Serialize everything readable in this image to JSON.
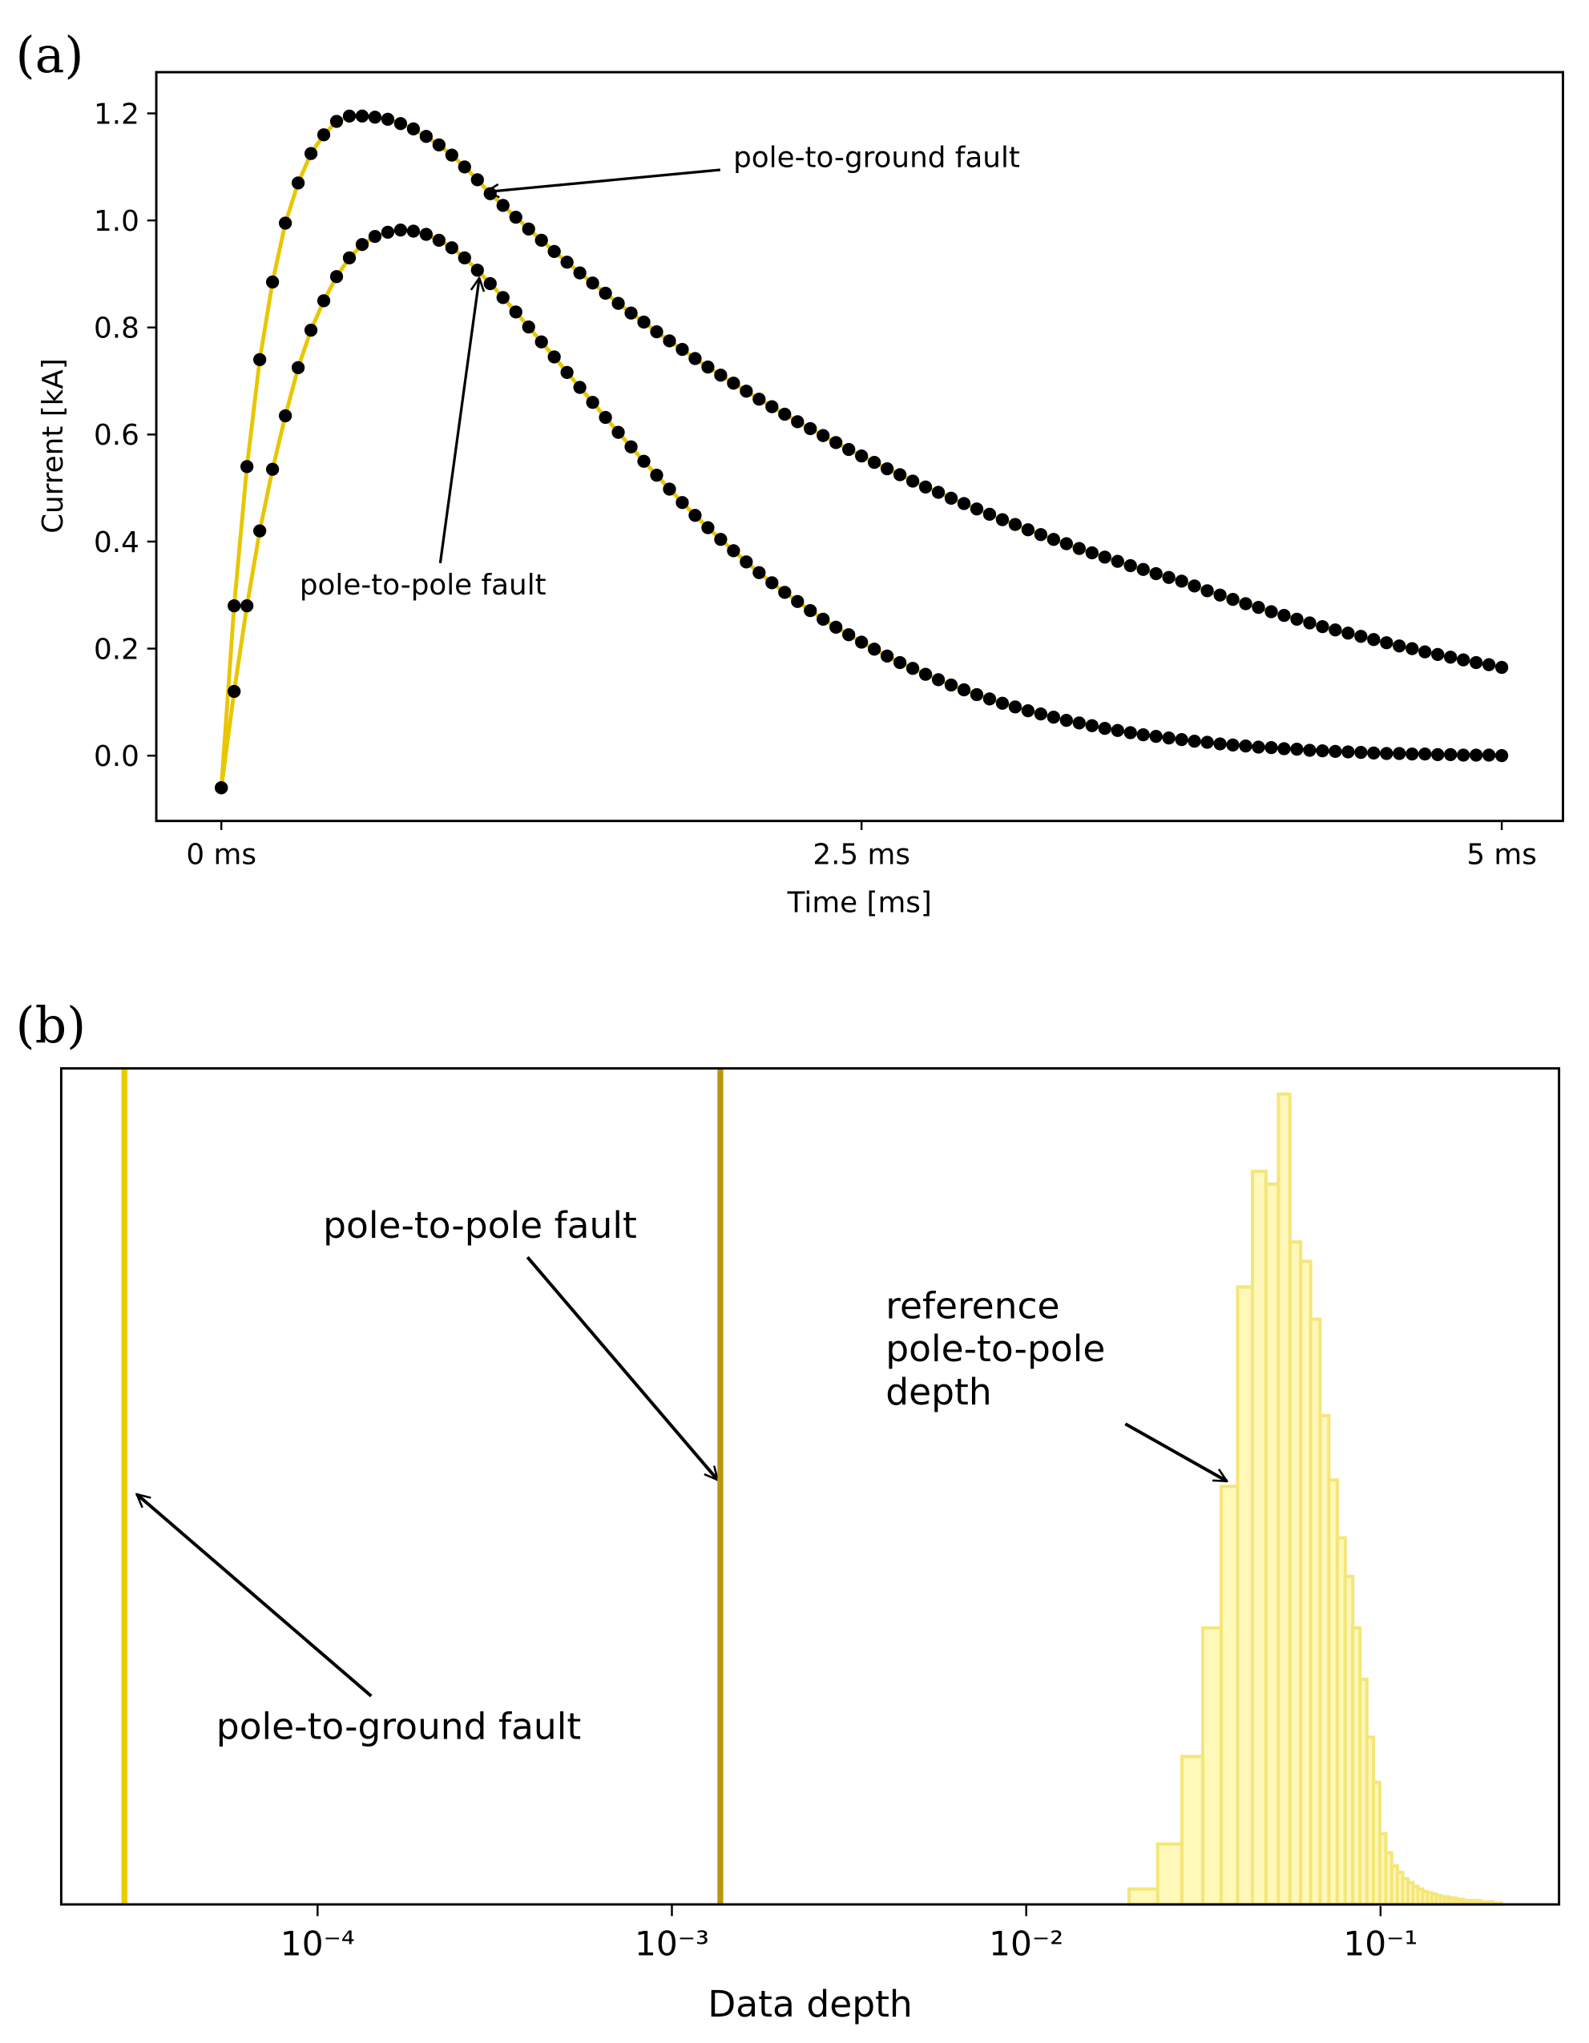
{
  "chart_data": [
    {
      "type": "line",
      "panel_label": "(a)",
      "xlabel": "Time [ms]",
      "ylabel": "Current [kA]",
      "annotations": [
        "pole-to-ground fault",
        "pole-to-pole fault"
      ],
      "xlim": [
        -0.254,
        5.239
      ],
      "ylim": [
        -0.122,
        1.277
      ],
      "xticks": [
        {
          "value": 0,
          "label": "0 ms"
        },
        {
          "value": 2.5,
          "label": "2.5 ms"
        },
        {
          "value": 5,
          "label": "5 ms"
        }
      ],
      "yticks": [
        {
          "value": 0,
          "label": "0.0"
        },
        0.2,
        0.4,
        0.6,
        0.8,
        {
          "value": 1,
          "label": "1.0"
        },
        1.2
      ],
      "grid": false,
      "x": [
        0,
        0.05,
        0.1,
        0.15,
        0.2,
        0.25,
        0.3,
        0.35,
        0.4,
        0.45,
        0.5,
        0.55,
        0.6,
        0.65,
        0.7,
        0.75,
        0.8,
        0.85,
        0.9,
        0.95,
        1,
        1.05,
        1.1,
        1.15,
        1.2,
        1.25,
        1.3,
        1.35,
        1.4,
        1.45,
        1.5,
        1.55,
        1.6,
        1.65,
        1.7,
        1.75,
        1.8,
        1.85,
        1.9,
        1.95,
        2,
        2.05,
        2.1,
        2.15,
        2.2,
        2.25,
        2.3,
        2.35,
        2.4,
        2.45,
        2.5,
        2.55,
        2.6,
        2.65,
        2.7,
        2.75,
        2.8,
        2.85,
        2.9,
        2.95,
        3,
        3.05,
        3.1,
        3.15,
        3.2,
        3.25,
        3.3,
        3.35,
        3.4,
        3.45,
        3.5,
        3.55,
        3.6,
        3.65,
        3.7,
        3.75,
        3.8,
        3.85,
        3.9,
        3.95,
        4,
        4.05,
        4.1,
        4.15,
        4.2,
        4.25,
        4.3,
        4.35,
        4.4,
        4.45,
        4.5,
        4.55,
        4.6,
        4.65,
        4.7,
        4.75,
        4.8,
        4.85,
        4.9,
        4.95,
        5
      ],
      "series": [
        {
          "color": "#e8c600",
          "marker_color": "#000000",
          "values": [
            -0.06,
            0.28,
            0.54,
            0.74,
            0.885,
            0.995,
            1.07,
            1.125,
            1.16,
            1.185,
            1.195,
            1.195,
            1.193,
            1.189,
            1.181,
            1.171,
            1.157,
            1.141,
            1.122,
            1.1,
            1.076,
            1.05,
            1.028,
            1.006,
            0.984,
            0.963,
            0.942,
            0.922,
            0.902,
            0.883,
            0.864,
            0.845,
            0.827,
            0.81,
            0.792,
            0.775,
            0.759,
            0.742,
            0.726,
            0.711,
            0.696,
            0.681,
            0.666,
            0.652,
            0.638,
            0.624,
            0.611,
            0.598,
            0.585,
            0.572,
            0.56,
            0.548,
            0.536,
            0.525,
            0.513,
            0.502,
            0.492,
            0.481,
            0.471,
            0.461,
            0.451,
            0.441,
            0.432,
            0.422,
            0.413,
            0.404,
            0.396,
            0.387,
            0.379,
            0.371,
            0.363,
            0.355,
            0.348,
            0.34,
            0.333,
            0.326,
            0.317,
            0.308,
            0.3,
            0.292,
            0.284,
            0.277,
            0.269,
            0.262,
            0.255,
            0.248,
            0.241,
            0.235,
            0.229,
            0.223,
            0.217,
            0.211,
            0.205,
            0.2,
            0.194,
            0.189,
            0.184,
            0.179,
            0.174,
            0.17,
            0.165
          ]
        },
        {
          "color": "#e8c600",
          "marker_color": "#000000",
          "values": [
            -0.06,
            0.12,
            0.28,
            0.42,
            0.535,
            0.635,
            0.725,
            0.795,
            0.85,
            0.895,
            0.93,
            0.955,
            0.97,
            0.978,
            0.982,
            0.98,
            0.974,
            0.963,
            0.949,
            0.93,
            0.907,
            0.882,
            0.856,
            0.829,
            0.801,
            0.773,
            0.745,
            0.716,
            0.688,
            0.66,
            0.632,
            0.604,
            0.577,
            0.55,
            0.524,
            0.498,
            0.473,
            0.449,
            0.426,
            0.404,
            0.383,
            0.362,
            0.342,
            0.323,
            0.305,
            0.288,
            0.271,
            0.255,
            0.24,
            0.226,
            0.212,
            0.199,
            0.186,
            0.174,
            0.163,
            0.152,
            0.142,
            0.132,
            0.123,
            0.114,
            0.106,
            0.098,
            0.091,
            0.084,
            0.078,
            0.072,
            0.066,
            0.061,
            0.056,
            0.051,
            0.047,
            0.043,
            0.039,
            0.036,
            0.033,
            0.03,
            0.027,
            0.025,
            0.022,
            0.02,
            0.018,
            0.016,
            0.015,
            0.013,
            0.012,
            0.01,
            0.009,
            0.008,
            0.007,
            0.006,
            0.005,
            0.004,
            0.004,
            0.003,
            0.003,
            0.002,
            0.002,
            0.001,
            0.001,
            0.001,
            0
          ]
        }
      ]
    },
    {
      "type": "histogram",
      "panel_label": "(b)",
      "xlabel": "Data depth",
      "xscale": "log",
      "xlim": [
        1.89e-05,
        0.319
      ],
      "ylim": [
        0,
        650
      ],
      "xticks": [
        {
          "value": 0.0001,
          "label": "10⁻⁴"
        },
        {
          "value": 0.001,
          "label": "10⁻³"
        },
        {
          "value": 0.01,
          "label": "10⁻²"
        },
        {
          "value": 0.1,
          "label": "10⁻¹"
        }
      ],
      "color": "#fff6a8",
      "edgecolor": "#f5e67a",
      "bins": [
        0.0195,
        0.0235,
        0.0275,
        0.0315,
        0.0355,
        0.0395,
        0.0435,
        0.0475,
        0.0515,
        0.0555,
        0.0595,
        0.0635,
        0.0675,
        0.0715,
        0.0755,
        0.0795,
        0.0835,
        0.0875,
        0.0915,
        0.0955,
        0.0995,
        0.1035,
        0.1075,
        0.1115,
        0.1155,
        0.1195,
        0.1235,
        0.1275,
        0.1315,
        0.1355,
        0.1395,
        0.1435,
        0.1475,
        0.1515,
        0.1555,
        0.1595,
        0.1635,
        0.1675,
        0.1715,
        0.1755,
        0.1795,
        0.1835,
        0.1875,
        0.1915,
        0.1955,
        0.1995,
        0.2035,
        0.2075,
        0.2115,
        0.2155,
        0.2195
      ],
      "counts": [
        12,
        47,
        115,
        215,
        325,
        480,
        570,
        560,
        630,
        515,
        500,
        455,
        380,
        330,
        285,
        255,
        215,
        175,
        130,
        95,
        55,
        40,
        30,
        25,
        20,
        17,
        14,
        12,
        10,
        9,
        8,
        7,
        6,
        6,
        5,
        5,
        4,
        4,
        3,
        3,
        3,
        2,
        3,
        2,
        2,
        1,
        2,
        1,
        1,
        1
      ],
      "lines": [
        {
          "value": 2.85e-05,
          "color": "#e8cc00",
          "label": "pole-to-ground fault"
        },
        {
          "value": 0.00137,
          "color": "#bf9410",
          "label": "pole-to-pole fault"
        }
      ],
      "reference_label": [
        "reference",
        "pole-to-pole",
        "depth"
      ]
    }
  ]
}
